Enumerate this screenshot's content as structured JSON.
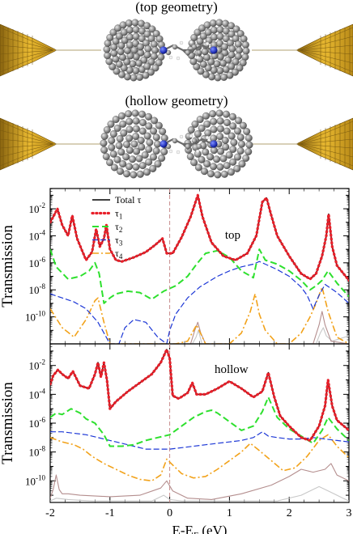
{
  "captions": {
    "top_geometry": "(top geometry)",
    "hollow_geometry": "(hollow geometry)"
  },
  "colors": {
    "gold": "#d9a521",
    "carbon": "#8c8c8c",
    "nitrogen": "#1f2fb8",
    "total": "#000000",
    "tau1": "#e8202a",
    "tau2": "#2ee02e",
    "tau3": "#1c37d6",
    "tau4": "#f2a21a",
    "extra1": "#b48e8e",
    "extra2": "#c8c8c8",
    "fermi": "#c78a8a"
  },
  "chart_data": [
    {
      "type": "line",
      "panel_label": "top",
      "ylabel": "Transmission",
      "xlim": [
        -2,
        3
      ],
      "ylog": true,
      "ylim_log10": [
        -12,
        -0.5
      ],
      "yticks": [
        "10^-2",
        "10^-4",
        "10^-6",
        "10^-8",
        "10^-10"
      ],
      "legend": {
        "placement": "top-left",
        "entries": [
          "Total τ",
          "τ1",
          "τ2",
          "τ3",
          "τ4"
        ]
      },
      "reference_line_x": 0,
      "series": [
        {
          "name": "Total τ",
          "key": "total",
          "x": [
            -2.0,
            -1.95,
            -1.88,
            -1.8,
            -1.7,
            -1.63,
            -1.55,
            -1.4,
            -1.3,
            -1.23,
            -1.17,
            -1.1,
            -1.06,
            -1.0,
            -0.9,
            -0.8,
            -0.6,
            -0.4,
            -0.25,
            -0.12,
            -0.05,
            0.05,
            0.2,
            0.35,
            0.47,
            0.55,
            0.7,
            0.9,
            1.1,
            1.3,
            1.45,
            1.55,
            1.62,
            1.7,
            1.8,
            2.0,
            2.2,
            2.35,
            2.45,
            2.55,
            2.62,
            2.66,
            2.72,
            2.8,
            3.0
          ],
          "log10": [
            -3.0,
            -2.6,
            -2.0,
            -3.2,
            -4.0,
            -2.5,
            -4.2,
            -5.8,
            -5.2,
            -3.5,
            -4.8,
            -4.2,
            -3.2,
            -5.0,
            -5.8,
            -5.9,
            -5.6,
            -5.2,
            -4.7,
            -4.2,
            -5.3,
            -5.3,
            -4.1,
            -2.6,
            -1.0,
            -2.6,
            -4.5,
            -5.5,
            -5.8,
            -5.3,
            -4.0,
            -1.5,
            -1.2,
            -2.5,
            -4.0,
            -5.5,
            -6.8,
            -7.2,
            -6.8,
            -5.5,
            -4.0,
            -2.4,
            -4.8,
            -6.2,
            -7.3
          ]
        },
        {
          "name": "τ1",
          "key": "tau1",
          "dotted": true,
          "x": [
            -2.0,
            -1.95,
            -1.88,
            -1.8,
            -1.7,
            -1.63,
            -1.55,
            -1.4,
            -1.3,
            -1.23,
            -1.17,
            -1.1,
            -1.06,
            -1.0,
            -0.9,
            -0.8,
            -0.6,
            -0.4,
            -0.25,
            -0.12,
            -0.05,
            0.05,
            0.2,
            0.35,
            0.47,
            0.55,
            0.7,
            0.9,
            1.1,
            1.3,
            1.45,
            1.55,
            1.62,
            1.7,
            1.8,
            2.0,
            2.2,
            2.35,
            2.45,
            2.55,
            2.62,
            2.66,
            2.72,
            2.8,
            3.0
          ],
          "log10": [
            -3.0,
            -2.6,
            -2.0,
            -3.2,
            -4.0,
            -2.5,
            -4.2,
            -5.8,
            -5.2,
            -3.5,
            -4.8,
            -4.2,
            -3.2,
            -5.0,
            -5.8,
            -5.9,
            -5.6,
            -5.2,
            -4.7,
            -4.2,
            -5.3,
            -5.3,
            -4.1,
            -2.6,
            -1.0,
            -2.6,
            -4.5,
            -5.5,
            -5.8,
            -5.3,
            -4.0,
            -1.5,
            -1.2,
            -2.5,
            -4.0,
            -5.5,
            -6.8,
            -7.2,
            -6.8,
            -5.5,
            -4.0,
            -2.4,
            -4.8,
            -6.2,
            -7.3
          ]
        },
        {
          "name": "τ2",
          "key": "tau2",
          "x": [
            -2.0,
            -1.9,
            -1.7,
            -1.5,
            -1.35,
            -1.25,
            -1.18,
            -1.1,
            -1.0,
            -0.9,
            -0.7,
            -0.5,
            -0.3,
            -0.1,
            0.1,
            0.3,
            0.45,
            0.6,
            0.8,
            1.0,
            1.2,
            1.4,
            1.5,
            1.6,
            1.8,
            2.0,
            2.2,
            2.35,
            2.45,
            2.55,
            2.65,
            2.8,
            3.0
          ],
          "log10": [
            -5.0,
            -6.3,
            -7.2,
            -7.0,
            -6.6,
            -6.0,
            -6.8,
            -9.0,
            -8.6,
            -8.3,
            -8.1,
            -8.2,
            -8.7,
            -8.1,
            -7.7,
            -7.0,
            -6.1,
            -5.3,
            -5.1,
            -5.6,
            -6.6,
            -7.1,
            -5.0,
            -5.8,
            -6.1,
            -6.6,
            -7.3,
            -8.0,
            -7.7,
            -7.3,
            -6.6,
            -7.5,
            -8.5
          ]
        },
        {
          "name": "τ3",
          "key": "tau3",
          "x": [
            -2.0,
            -1.8,
            -1.6,
            -1.4,
            -1.2,
            -1.1,
            -1.0,
            -0.85,
            -0.75,
            -0.6,
            -0.4,
            -0.2,
            -0.05,
            0.0,
            0.1,
            0.3,
            0.5,
            0.8,
            1.0,
            1.2,
            1.4,
            1.5,
            1.6,
            1.8,
            2.0,
            2.2,
            2.3,
            2.4,
            2.5,
            2.6,
            2.8,
            3.0
          ],
          "log10": [
            -8.3,
            -8.6,
            -8.9,
            -9.4,
            -10.4,
            -11.2,
            -12.0,
            -12.0,
            -10.8,
            -10.2,
            -10.4,
            -11.5,
            -12.0,
            -11.0,
            -9.8,
            -8.6,
            -7.8,
            -7.0,
            -6.6,
            -6.3,
            -6.1,
            -5.9,
            -6.1,
            -6.5,
            -7.0,
            -7.8,
            -8.4,
            -9.4,
            -8.4,
            -7.6,
            -8.2,
            -9.0
          ]
        },
        {
          "name": "τ4",
          "key": "tau4",
          "x": [
            -2.0,
            -1.8,
            -1.6,
            -1.4,
            -1.25,
            -1.2,
            -1.1,
            -1.0,
            -0.9,
            -0.7,
            -0.5,
            -0.3,
            -0.1,
            0.1,
            0.3,
            0.45,
            0.6,
            0.8,
            1.0,
            1.2,
            1.35,
            1.43,
            1.5,
            1.6,
            1.8,
            2.0,
            2.2,
            2.35,
            2.45,
            2.55,
            2.65,
            2.8,
            3.0
          ],
          "log10": [
            -9.4,
            -10.8,
            -11.5,
            -10.2,
            -8.8,
            -8.6,
            -10.4,
            -12.0,
            -12.0,
            -12.0,
            -12.0,
            -12.0,
            -12.0,
            -12.0,
            -11.8,
            -10.6,
            -12.0,
            -12.0,
            -12.0,
            -11.2,
            -9.6,
            -8.3,
            -9.8,
            -11.0,
            -12.0,
            -12.0,
            -11.2,
            -10.0,
            -9.0,
            -7.8,
            -9.6,
            -11.5,
            -12.0
          ]
        },
        {
          "name": "",
          "key": "extra1",
          "x": [
            0.35,
            0.42,
            0.47,
            0.52,
            0.6,
            2.4,
            2.5,
            2.55,
            2.6,
            2.7,
            3.0
          ],
          "log10": [
            -12.0,
            -11.0,
            -10.4,
            -11.2,
            -12.0,
            -12.0,
            -10.6,
            -9.6,
            -10.6,
            -11.8,
            -12.0
          ]
        },
        {
          "name": "",
          "key": "extra2",
          "x": [
            0.38,
            0.44,
            0.48,
            0.54,
            2.45,
            2.52,
            2.57,
            2.62,
            2.72,
            3.0
          ],
          "log10": [
            -12.0,
            -11.5,
            -11.0,
            -12.0,
            -12.0,
            -11.2,
            -10.8,
            -11.4,
            -11.8,
            -11.4
          ]
        }
      ]
    },
    {
      "type": "line",
      "panel_label": "hollow",
      "ylabel": "Transmission",
      "xlabel": "E-E_F (eV)",
      "xlim": [
        -2,
        3
      ],
      "xticks": [
        -2,
        -1,
        0,
        1,
        2,
        3
      ],
      "ylog": true,
      "ylim_log10": [
        -11.5,
        -0.5
      ],
      "yticks": [
        "10^-2",
        "10^-4",
        "10^-6",
        "10^-8",
        "10^-10"
      ],
      "reference_line_x": 0,
      "series": [
        {
          "name": "Total τ",
          "key": "total",
          "x": [
            -2.0,
            -1.95,
            -1.87,
            -1.8,
            -1.7,
            -1.62,
            -1.5,
            -1.35,
            -1.25,
            -1.2,
            -1.15,
            -1.1,
            -1.05,
            -1.0,
            -0.9,
            -0.7,
            -0.5,
            -0.3,
            -0.15,
            -0.05,
            0.0,
            0.05,
            0.15,
            0.3,
            0.38,
            0.45,
            0.6,
            0.8,
            1.0,
            1.2,
            1.4,
            1.55,
            1.65,
            1.75,
            1.85,
            2.0,
            2.2,
            2.35,
            2.5,
            2.6,
            2.65,
            2.72,
            2.8,
            3.0
          ],
          "log10": [
            -3.3,
            -2.7,
            -2.3,
            -2.6,
            -2.9,
            -2.4,
            -3.4,
            -3.6,
            -2.6,
            -1.8,
            -2.8,
            -1.8,
            -3.0,
            -5.0,
            -4.5,
            -3.8,
            -3.2,
            -2.6,
            -1.8,
            -0.9,
            -1.5,
            -4.1,
            -4.3,
            -3.9,
            -3.2,
            -4.0,
            -4.0,
            -3.6,
            -3.1,
            -3.6,
            -4.2,
            -3.8,
            -2.5,
            -4.2,
            -5.5,
            -6.2,
            -7.0,
            -7.2,
            -6.2,
            -4.8,
            -3.0,
            -4.8,
            -5.8,
            -6.5
          ]
        },
        {
          "name": "τ1",
          "key": "tau1",
          "dotted": true,
          "x": [
            -2.0,
            -1.95,
            -1.87,
            -1.8,
            -1.7,
            -1.62,
            -1.5,
            -1.35,
            -1.25,
            -1.2,
            -1.15,
            -1.1,
            -1.05,
            -1.0,
            -0.9,
            -0.7,
            -0.5,
            -0.3,
            -0.15,
            -0.05,
            0.0,
            0.05,
            0.15,
            0.3,
            0.38,
            0.45,
            0.6,
            0.8,
            1.0,
            1.2,
            1.4,
            1.55,
            1.65,
            1.75,
            1.85,
            2.0,
            2.2,
            2.35,
            2.5,
            2.6,
            2.65,
            2.72,
            2.8,
            3.0
          ],
          "log10": [
            -3.3,
            -2.7,
            -2.3,
            -2.6,
            -2.9,
            -2.4,
            -3.4,
            -3.6,
            -2.6,
            -1.8,
            -2.8,
            -1.8,
            -3.0,
            -5.0,
            -4.5,
            -3.8,
            -3.2,
            -2.6,
            -1.8,
            -0.9,
            -1.5,
            -4.1,
            -4.3,
            -3.9,
            -3.2,
            -4.0,
            -4.0,
            -3.6,
            -3.1,
            -3.6,
            -4.2,
            -3.8,
            -2.5,
            -4.2,
            -5.5,
            -6.2,
            -7.0,
            -7.2,
            -6.2,
            -4.8,
            -3.0,
            -4.8,
            -5.8,
            -6.5
          ]
        },
        {
          "name": "τ2",
          "key": "tau2",
          "x": [
            -2.0,
            -1.9,
            -1.8,
            -1.65,
            -1.5,
            -1.4,
            -1.25,
            -1.1,
            -1.0,
            -0.8,
            -0.6,
            -0.4,
            -0.2,
            0.0,
            0.2,
            0.4,
            0.6,
            0.7,
            0.8,
            1.0,
            1.2,
            1.4,
            1.55,
            1.65,
            1.8,
            2.0,
            2.2,
            2.4,
            2.55,
            2.65,
            2.8,
            3.0
          ],
          "log10": [
            -5.6,
            -5.3,
            -5.4,
            -5.0,
            -5.3,
            -5.7,
            -6.0,
            -6.8,
            -7.6,
            -7.6,
            -7.5,
            -7.2,
            -7.0,
            -6.8,
            -6.2,
            -5.6,
            -5.2,
            -5.1,
            -5.3,
            -5.9,
            -6.5,
            -6.2,
            -5.2,
            -4.2,
            -5.6,
            -6.4,
            -6.9,
            -7.4,
            -6.5,
            -5.6,
            -6.4,
            -7.2
          ]
        },
        {
          "name": "τ3",
          "key": "tau3",
          "x": [
            -2.0,
            -1.8,
            -1.6,
            -1.4,
            -1.2,
            -1.0,
            -0.8,
            -0.6,
            -0.4,
            -0.2,
            0.0,
            0.2,
            0.4,
            0.6,
            0.8,
            1.0,
            1.2,
            1.4,
            1.55,
            1.65,
            1.8,
            2.0,
            2.2,
            2.4,
            2.6,
            2.8,
            3.0
          ],
          "log10": [
            -6.6,
            -6.6,
            -6.7,
            -6.8,
            -7.0,
            -7.2,
            -7.4,
            -7.6,
            -7.8,
            -7.8,
            -7.8,
            -7.7,
            -7.6,
            -7.5,
            -7.4,
            -7.3,
            -7.2,
            -7.0,
            -6.6,
            -6.9,
            -7.0,
            -7.1,
            -7.1,
            -7.0,
            -7.1,
            -7.2,
            -7.3
          ]
        },
        {
          "name": "τ4",
          "key": "tau4",
          "x": [
            -2.0,
            -1.8,
            -1.6,
            -1.45,
            -1.3,
            -1.1,
            -0.9,
            -0.7,
            -0.5,
            -0.3,
            -0.15,
            -0.05,
            0.05,
            0.2,
            0.4,
            0.6,
            0.8,
            1.0,
            1.2,
            1.35,
            1.5,
            1.7,
            1.9,
            2.1,
            2.3,
            2.5,
            2.65,
            2.8,
            3.0
          ],
          "log10": [
            -7.0,
            -7.3,
            -7.5,
            -7.8,
            -8.3,
            -8.8,
            -9.2,
            -9.6,
            -9.9,
            -10.0,
            -9.6,
            -8.5,
            -8.9,
            -9.5,
            -9.8,
            -9.7,
            -9.2,
            -8.6,
            -8.0,
            -7.4,
            -7.9,
            -8.6,
            -9.3,
            -9.1,
            -8.3,
            -7.2,
            -6.8,
            -7.6,
            -8.4
          ]
        },
        {
          "name": "",
          "key": "extra1",
          "x": [
            -2.0,
            -1.95,
            -1.9,
            -1.85,
            -1.8,
            -1.7,
            -1.5,
            -1.0,
            -0.5,
            -0.15,
            -0.05,
            0.05,
            0.3,
            0.7,
            1.2,
            1.7,
            2.0,
            2.2,
            2.4,
            2.6,
            2.7,
            2.8,
            3.0
          ],
          "log10": [
            -11.2,
            -10.6,
            -9.6,
            -10.6,
            -10.9,
            -10.9,
            -11.0,
            -11.1,
            -11.0,
            -10.5,
            -10.0,
            -10.7,
            -11.2,
            -11.3,
            -10.9,
            -10.3,
            -9.7,
            -9.2,
            -9.4,
            -9.2,
            -8.8,
            -9.6,
            -10.0
          ]
        },
        {
          "name": "",
          "key": "extra2",
          "x": [
            -2.0,
            -1.9,
            -1.7,
            -1.3,
            -0.8,
            -0.3,
            -0.1,
            0.0,
            0.2,
            0.6,
            1.2,
            1.8,
            2.2,
            2.5,
            2.7,
            2.9,
            3.0
          ],
          "log10": [
            -11.4,
            -11.2,
            -11.3,
            -11.4,
            -11.4,
            -11.4,
            -11.0,
            -11.3,
            -11.4,
            -11.4,
            -11.4,
            -11.4,
            -11.0,
            -10.4,
            -10.8,
            -11.2,
            -11.4
          ]
        }
      ]
    }
  ]
}
